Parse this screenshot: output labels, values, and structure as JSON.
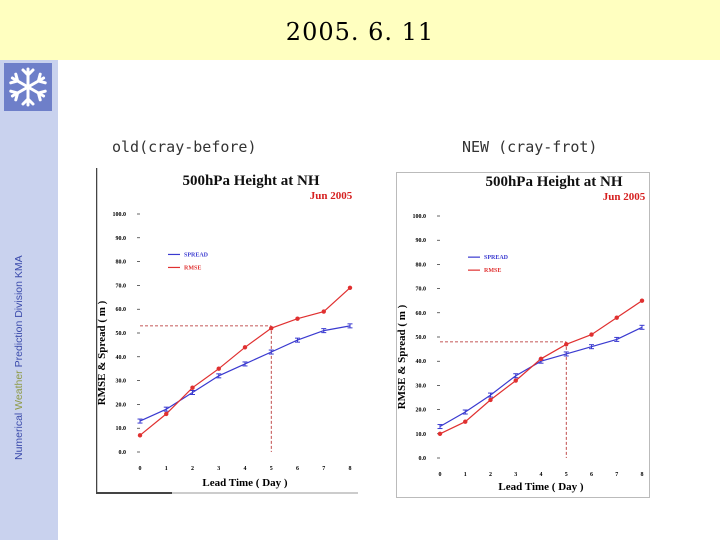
{
  "header": {
    "title": "2005. 6. 11"
  },
  "sidebar": {
    "logo": "snowflake-icon",
    "text_prefix": "Numerical ",
    "text_highlight": "Weather",
    "text_suffix": " Prediction Division  KMA"
  },
  "colors": {
    "spread": "#3a3ad0",
    "rmse": "#e03030",
    "header_bg": "#ffffc0",
    "sidebar_bg": "#c9d2ee"
  },
  "captions": {
    "left": "old(cray-before)",
    "right": "NEW (cray-frot)"
  },
  "chart_data": [
    {
      "type": "line",
      "title": "500hPa Height at NH",
      "subtitle": "Jun 2005",
      "xlabel": "Lead Time ( Day )",
      "ylabel": "RMSE & Spread ( m )",
      "x": [
        0,
        1,
        2,
        3,
        4,
        5,
        6,
        7,
        8
      ],
      "xlim": [
        0,
        8
      ],
      "ylim": [
        0,
        100
      ],
      "yticks": [
        "0.0",
        "10.0",
        "20.0",
        "30.0",
        "40.0",
        "50.0",
        "60.0",
        "70.0",
        "80.0",
        "90.0",
        "100.0"
      ],
      "legend": "upper-left",
      "series": [
        {
          "name": "SPREAD",
          "color": "#3a3ad0",
          "values": [
            13,
            18,
            25,
            32,
            37,
            42,
            47,
            51,
            53
          ]
        },
        {
          "name": "RMSE",
          "color": "#e03030",
          "values": [
            7,
            16,
            27,
            35,
            44,
            52,
            56,
            59,
            69
          ]
        }
      ],
      "reference": {
        "x": 5,
        "y": 53
      }
    },
    {
      "type": "line",
      "title": "500hPa Height at NH",
      "subtitle": "Jun 2005",
      "xlabel": "Lead Time ( Day )",
      "ylabel": "RMSE & Spread ( m )",
      "x": [
        0,
        1,
        2,
        3,
        4,
        5,
        6,
        7,
        8
      ],
      "xlim": [
        0,
        8
      ],
      "ylim": [
        0,
        100
      ],
      "yticks": [
        "0.0",
        "10.0",
        "20.0",
        "30.0",
        "40.0",
        "50.0",
        "60.0",
        "70.0",
        "80.0",
        "90.0",
        "100.0"
      ],
      "legend": "upper-left",
      "series": [
        {
          "name": "SPREAD",
          "color": "#3a3ad0",
          "values": [
            13,
            19,
            26,
            34,
            40,
            43,
            46,
            49,
            54
          ]
        },
        {
          "name": "RMSE",
          "color": "#e03030",
          "values": [
            10,
            15,
            24,
            32,
            41,
            47,
            51,
            58,
            65
          ]
        }
      ],
      "reference": {
        "x": 5,
        "y": 48
      }
    }
  ]
}
